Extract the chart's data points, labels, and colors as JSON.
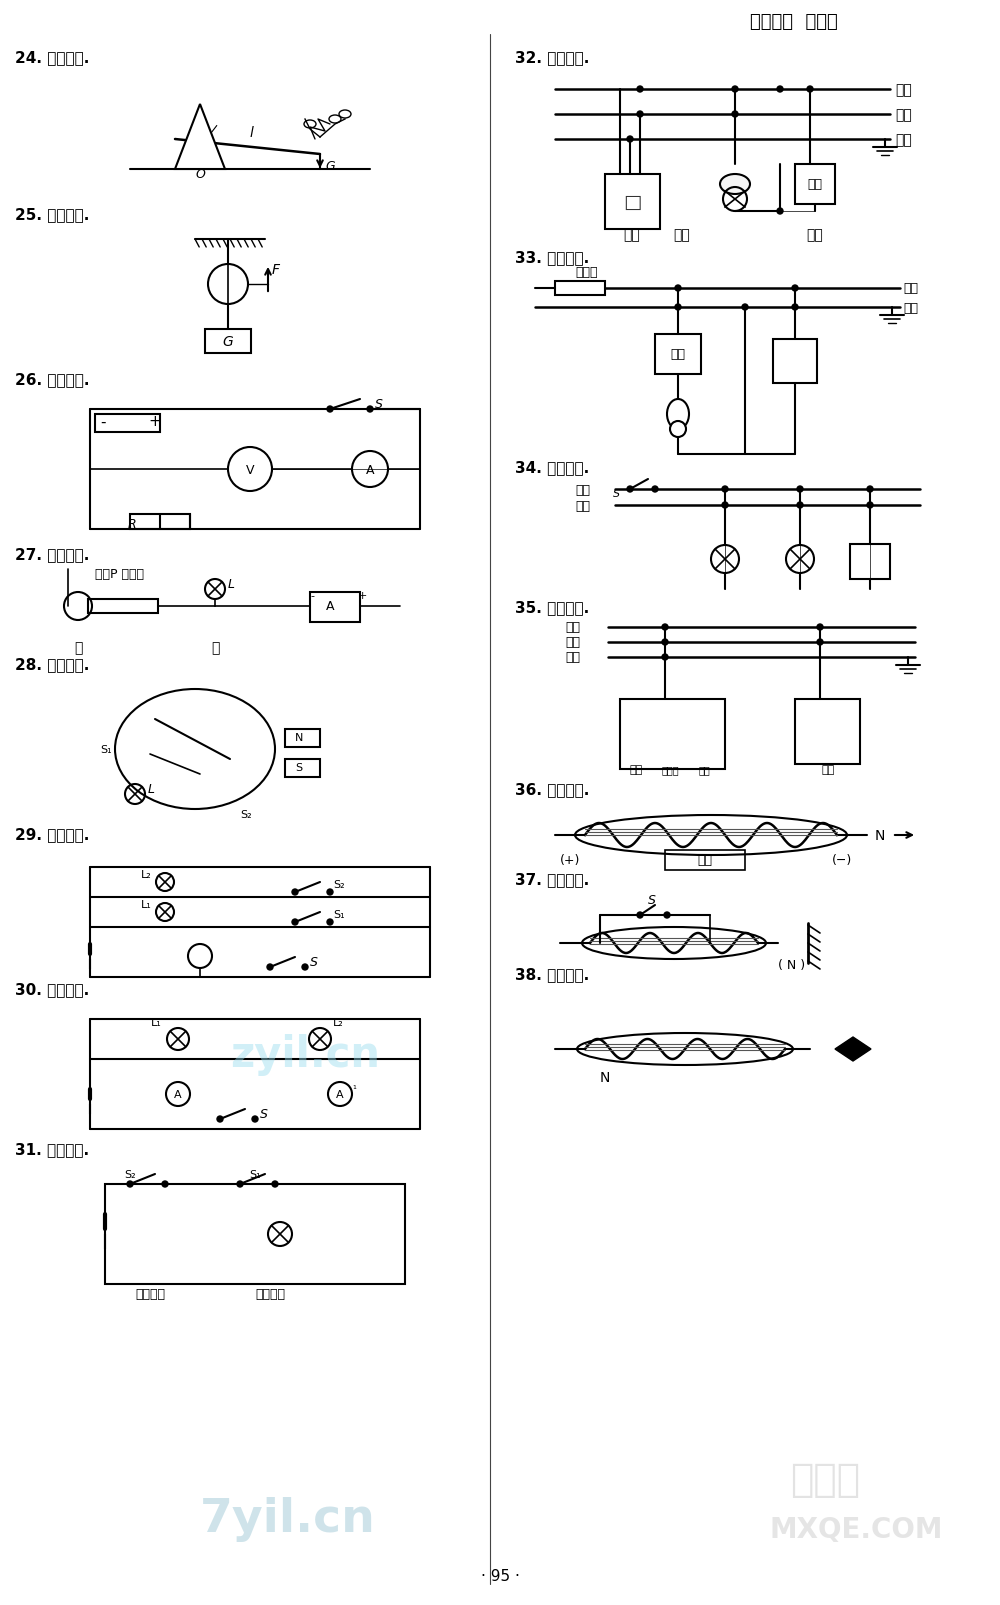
{
  "title_header": "升学锦囊  参考答",
  "page_number": "· 95 ·",
  "background_color": "#ffffff",
  "text_color": "#000000",
  "label_24": "24. 如图所示.",
  "label_25": "25. 如图所示.",
  "label_26": "26. 如图所示.",
  "label_27": "27. 如图所示.",
  "label_28": "28. 如图所示.",
  "label_29": "29. 如图所示.",
  "label_30": "30. 如图所示.",
  "label_31": "31. 如图所示.",
  "label_32": "32. 如图所示.",
  "label_33": "33. 如图所示.",
  "label_34": "34. 如图所示.",
  "label_35": "35. 如图所示.",
  "label_36": "36. 如图所示.",
  "label_37": "37. 如图所示.",
  "label_38": "38. 如图所示.",
  "huoxian": "火线",
  "lingxian": "零线",
  "dixian": "地线",
  "chazuo": "插座",
  "kaiguan": "开关",
  "baoxiansi": "保险丝",
  "huapian": "滑片P 电阵丝",
  "jia": "甲",
  "yi": "乙",
  "shengkong": "声控开关",
  "guangkong": "光控开关",
  "dianyuan": "电源",
  "kaiGuan": "开关",
  "zhishideng": "指示灯",
  "diankong": "电阵",
  "chajia": "插孔",
  "watermark_left": "zyil.cn",
  "watermark_right": "MXQE.COM",
  "watermark_cn": "答案圈"
}
